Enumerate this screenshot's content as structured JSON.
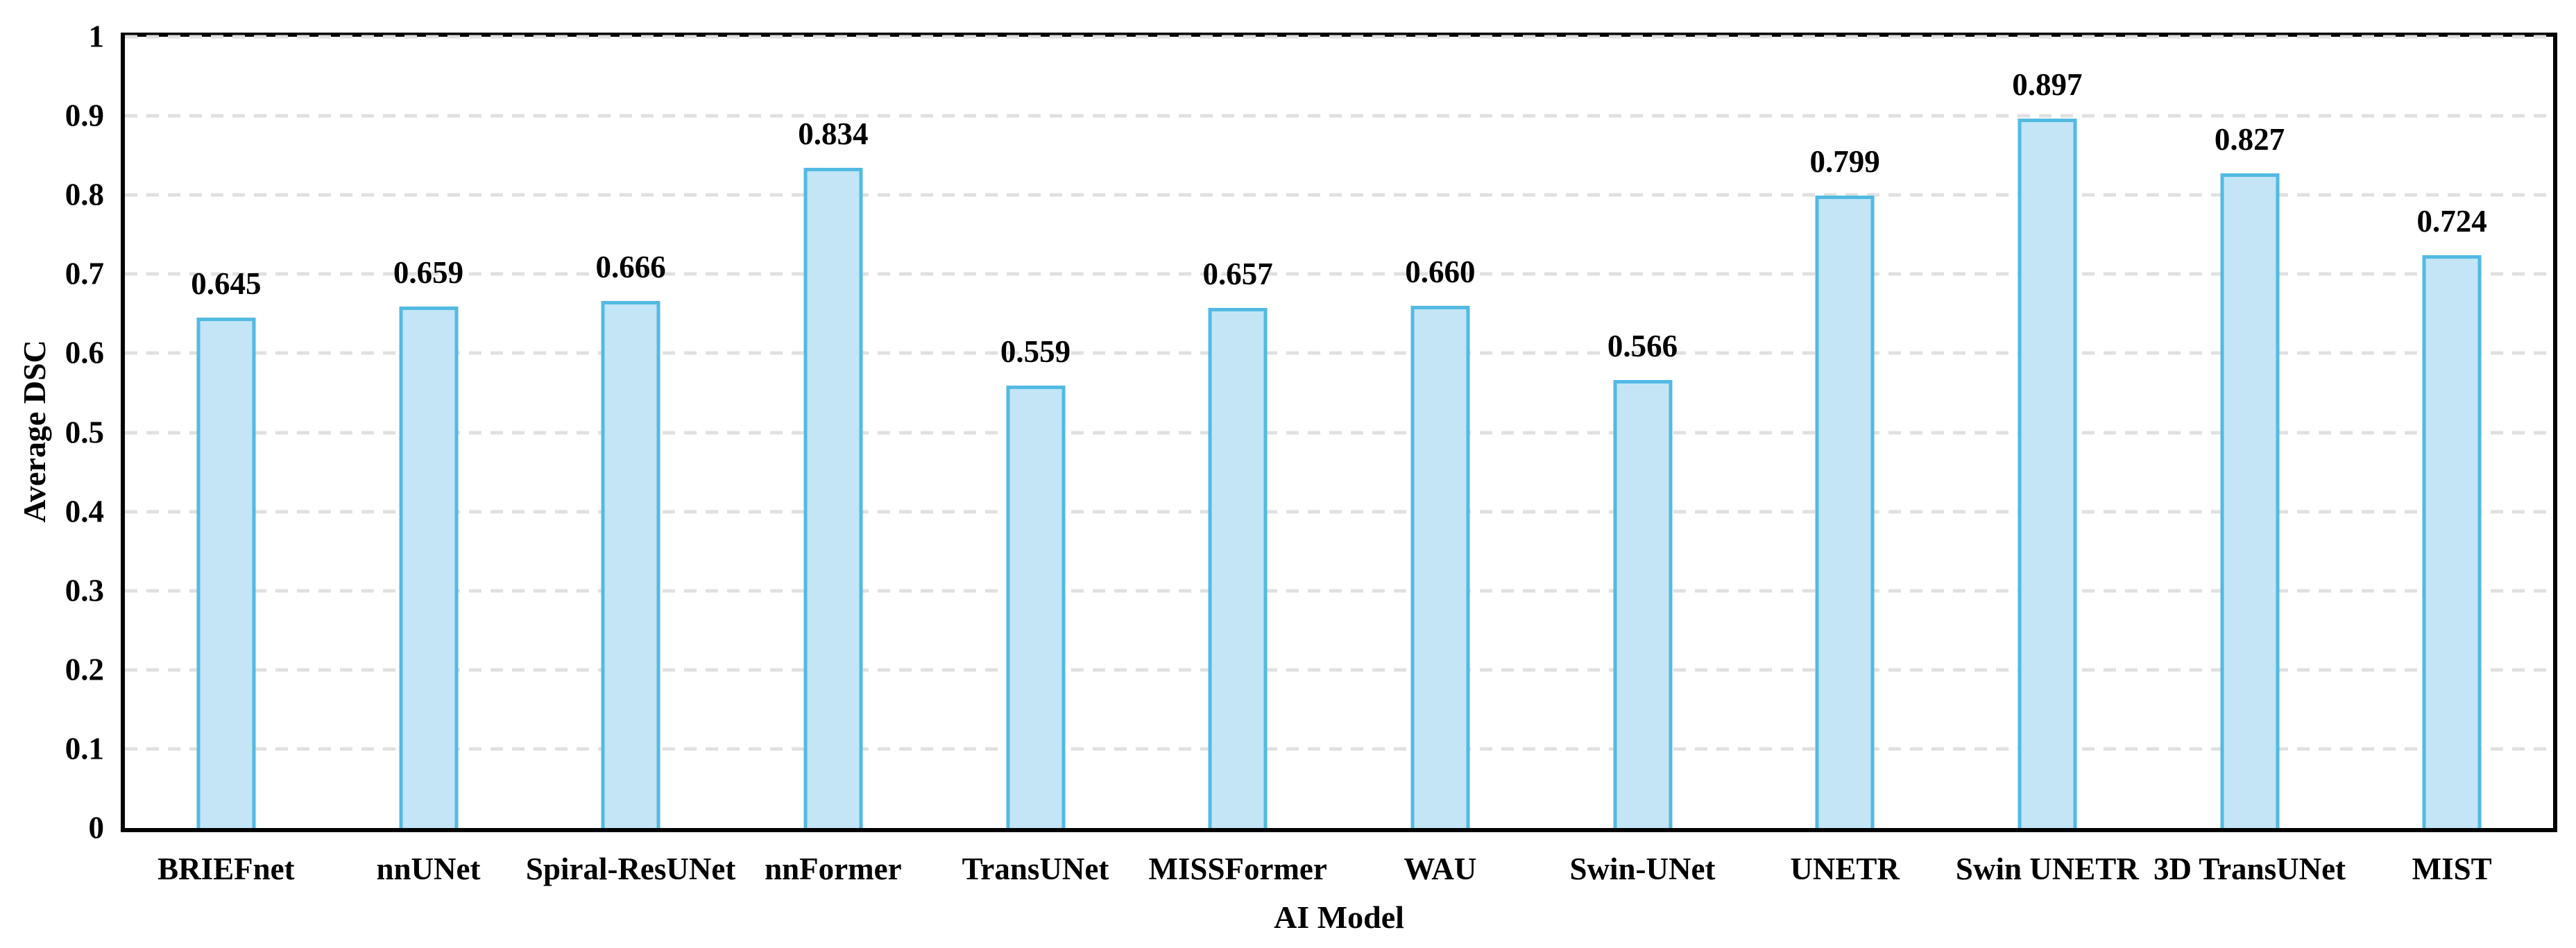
{
  "figure": {
    "background_color": "#FFFFFF",
    "frame_color": "#000000"
  },
  "chart_data": {
    "type": "bar",
    "title": "",
    "xlabel": "AI Model",
    "ylabel": "Average DSC",
    "categories": [
      "BRIEFnet",
      "nnUNet",
      "Spiral-ResUNet",
      "nnFormer",
      "TransUNet",
      "MISSFormer",
      "WAU",
      "Swin-UNet",
      "UNETR",
      "Swin UNETR",
      "3D TransUNet",
      "MIST"
    ],
    "values": [
      0.645,
      0.659,
      0.666,
      0.834,
      0.559,
      0.657,
      0.66,
      0.566,
      0.799,
      0.897,
      0.827,
      0.724
    ],
    "value_labels": [
      "0.645",
      "0.659",
      "0.666",
      "0.834",
      "0.559",
      "0.657",
      "0.660",
      "0.566",
      "0.799",
      "0.897",
      "0.827",
      "0.724"
    ],
    "ylim": [
      0,
      1
    ],
    "y_ticks": [
      {
        "value": 1.0,
        "label": "1"
      },
      {
        "value": 0.9,
        "label": "0.9"
      },
      {
        "value": 0.8,
        "label": "0.8"
      },
      {
        "value": 0.7,
        "label": "0.7"
      },
      {
        "value": 0.6,
        "label": "0.6"
      },
      {
        "value": 0.5,
        "label": "0.5"
      },
      {
        "value": 0.4,
        "label": "0.4"
      },
      {
        "value": 0.3,
        "label": "0.3"
      },
      {
        "value": 0.2,
        "label": "0.2"
      },
      {
        "value": 0.1,
        "label": "0.1"
      },
      {
        "value": 0.0,
        "label": "0"
      }
    ],
    "grid": {
      "axis": "y",
      "style": "dashed",
      "color": "#E0E0E0",
      "on": true
    },
    "legend_position": "none",
    "bar_style": {
      "fill_color": "#C3E5F6",
      "border_color": "#52BAE3"
    }
  }
}
